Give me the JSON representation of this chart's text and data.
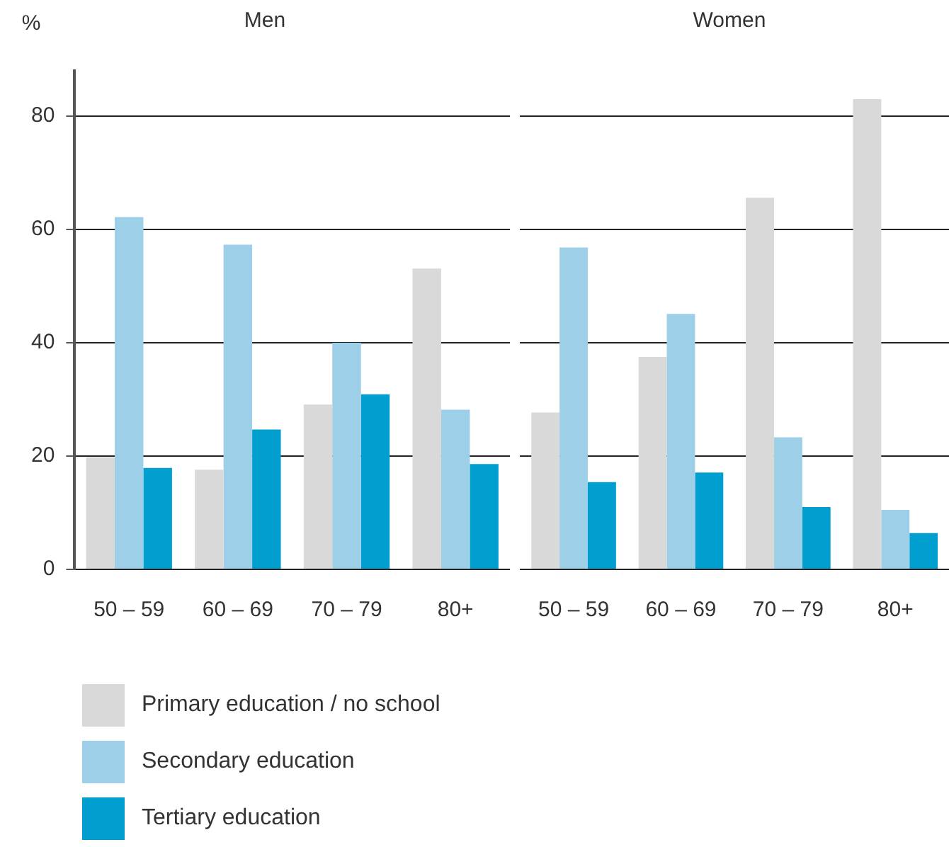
{
  "chart_data": [
    {
      "type": "bar",
      "title": "Men",
      "ylabel": "%",
      "categories": [
        "50 – 59",
        "60 – 69",
        "70 – 79",
        "80+"
      ],
      "ylim": [
        0,
        88
      ],
      "yticks": [
        0,
        20,
        40,
        60,
        80
      ],
      "grid": "y",
      "legend": "bottom",
      "series": [
        {
          "name": "Primary education / no school",
          "color": "#d9d9d9",
          "values": [
            19.8,
            17.6,
            29.1,
            53.1
          ]
        },
        {
          "name": "Secondary education",
          "color": "#9dcfe9",
          "values": [
            62.2,
            57.3,
            40.0,
            28.2
          ]
        },
        {
          "name": "Tertiary education",
          "color": "#009fd0",
          "values": [
            17.9,
            24.7,
            30.9,
            18.6
          ]
        }
      ]
    },
    {
      "type": "bar",
      "title": "Women",
      "categories": [
        "50 – 59",
        "60 – 69",
        "70 – 79",
        "80+"
      ],
      "yticks": [
        0,
        20,
        40,
        60,
        80
      ],
      "grid": "y",
      "tick_labels": "x",
      "series": [
        {
          "color": "#d9d9d9",
          "values": [
            27.7,
            37.5,
            65.6,
            83.0
          ]
        },
        {
          "color": "#9dcfe9",
          "values": [
            56.8,
            45.1,
            23.3,
            10.5
          ]
        },
        {
          "color": "#009fd0",
          "values": [
            15.4,
            17.1,
            11.0,
            6.4
          ]
        }
      ]
    }
  ]
}
